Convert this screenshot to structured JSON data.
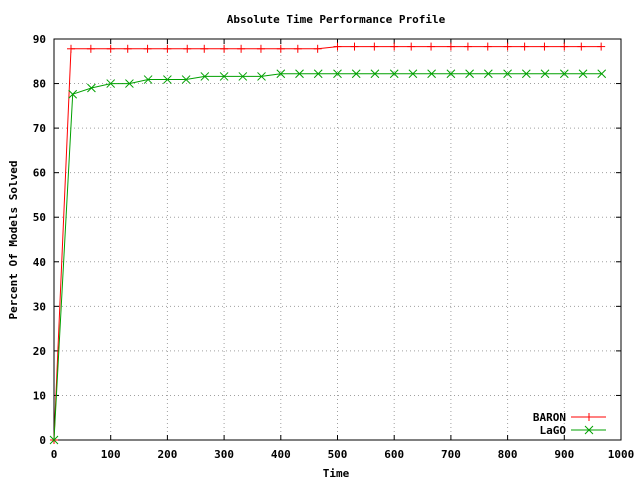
{
  "chart_data": {
    "type": "line",
    "title": "Absolute Time Performance Profile",
    "xlabel": "Time",
    "ylabel": "Percent Of Models Solved",
    "xlim": [
      0,
      1000
    ],
    "ylim": [
      0,
      90
    ],
    "xticks": [
      0,
      100,
      200,
      300,
      400,
      500,
      600,
      700,
      800,
      900,
      1000
    ],
    "yticks": [
      0,
      10,
      20,
      30,
      40,
      50,
      60,
      70,
      80,
      90
    ],
    "grid": true,
    "legend_position": "bottom-right",
    "series": [
      {
        "name": "BARON",
        "color": "#ff0000",
        "marker": "plus",
        "x": [
          0,
          30,
          65,
          100,
          130,
          165,
          200,
          235,
          265,
          300,
          330,
          365,
          400,
          430,
          465,
          500,
          530,
          565,
          600,
          630,
          665,
          700,
          730,
          765,
          800,
          830,
          865,
          900,
          930,
          965
        ],
        "y": [
          0,
          87.8,
          87.8,
          87.8,
          87.8,
          87.8,
          87.8,
          87.8,
          87.8,
          87.8,
          87.8,
          87.8,
          87.8,
          87.8,
          87.8,
          88.3,
          88.3,
          88.3,
          88.3,
          88.3,
          88.3,
          88.3,
          88.3,
          88.3,
          88.3,
          88.3,
          88.3,
          88.3,
          88.3,
          88.3
        ]
      },
      {
        "name": "LaGO",
        "color": "#00a000",
        "marker": "cross",
        "x": [
          0,
          33,
          66,
          100,
          133,
          166,
          200,
          233,
          266,
          300,
          333,
          366,
          400,
          433,
          466,
          500,
          533,
          566,
          600,
          633,
          666,
          700,
          733,
          766,
          800,
          833,
          866,
          900,
          933,
          966
        ],
        "y": [
          0,
          77.6,
          79.0,
          80.0,
          80.0,
          80.9,
          80.9,
          80.9,
          81.6,
          81.6,
          81.6,
          81.6,
          82.2,
          82.2,
          82.2,
          82.2,
          82.2,
          82.2,
          82.2,
          82.2,
          82.2,
          82.2,
          82.2,
          82.2,
          82.2,
          82.2,
          82.2,
          82.2,
          82.2,
          82.2
        ]
      }
    ]
  }
}
